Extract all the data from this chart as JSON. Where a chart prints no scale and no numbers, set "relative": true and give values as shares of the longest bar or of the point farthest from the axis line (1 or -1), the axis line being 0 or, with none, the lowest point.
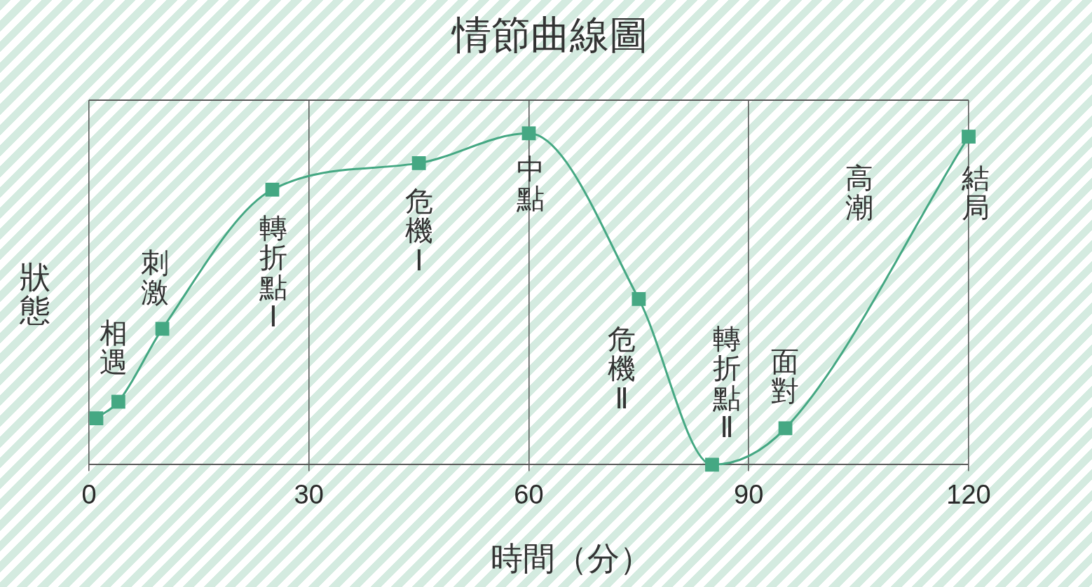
{
  "chart_data": {
    "type": "line",
    "title": "情節曲線圖",
    "xlabel": "時間（分）",
    "ylabel": "狀態",
    "relative": true,
    "x": [
      1,
      4,
      10,
      25,
      45,
      60,
      75,
      85,
      95,
      120
    ],
    "series": [
      {
        "color": "#45a883",
        "values": [
          0.14,
          0.19,
          0.41,
          0.83,
          0.91,
          1,
          0.5,
          0,
          0.11,
          0.99
        ]
      }
    ],
    "xlim": [
      0,
      120
    ],
    "xticks": [
      0,
      30,
      60,
      90,
      120
    ],
    "grid": "x",
    "marker": "square",
    "line_style": "solid",
    "annotations": [
      "相遇",
      "刺激",
      "轉折點Ⅰ",
      "危機Ⅰ",
      "中點",
      "危機Ⅱ",
      "轉折點Ⅱ",
      "面對",
      "高潮",
      "結局"
    ]
  }
}
